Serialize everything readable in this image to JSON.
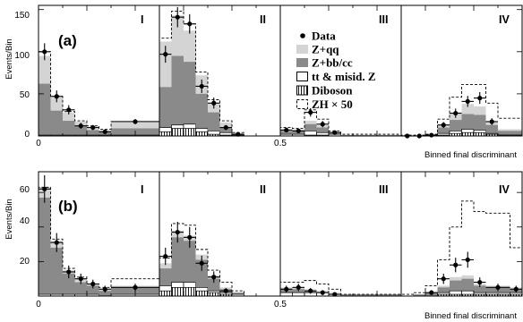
{
  "chart_data": [
    {
      "type": "histogram",
      "panel_label": "(a)",
      "ylabel": "Events/Bin",
      "xlabel": "Binned final discriminant",
      "xlim": [
        0,
        1
      ],
      "ylim": [
        0,
        155
      ],
      "x_ticks": [
        "0",
        "0.5"
      ],
      "y_ticks": [
        "0",
        "50",
        "100",
        "150"
      ],
      "region_labels": [
        "I",
        "II",
        "III",
        "IV"
      ],
      "region_edges": [
        0.25,
        0.5,
        0.75
      ],
      "legend": {
        "position": "center",
        "entries": [
          {
            "label": "Data",
            "marker": "point",
            "color": "#000000"
          },
          {
            "label": "Z+qq",
            "marker": "fill",
            "color": "#d4d4d4"
          },
          {
            "label": "Z+bb/cc",
            "marker": "fill",
            "color": "#8a8a8a"
          },
          {
            "label": "tt & misid. Z",
            "marker": "open",
            "color": "#ffffff"
          },
          {
            "label": "Diboson",
            "marker": "hatch",
            "color": "#ffffff"
          },
          {
            "label": "ZH × 50",
            "marker": "dashed",
            "color": "#000000"
          }
        ]
      },
      "bins": [
        {
          "x0": 0.0,
          "x1": 0.025,
          "dib": 0,
          "tt": 1,
          "zbb": 62,
          "zqq": 95,
          "zh": 100,
          "data": 100,
          "err": 10
        },
        {
          "x0": 0.025,
          "x1": 0.05,
          "dib": 0,
          "tt": 1,
          "zbb": 30,
          "zqq": 46,
          "zh": 47,
          "data": 47,
          "err": 7
        },
        {
          "x0": 0.05,
          "x1": 0.075,
          "dib": 0,
          "tt": 1,
          "zbb": 18,
          "zqq": 28,
          "zh": 29,
          "data": 31,
          "err": 5.5
        },
        {
          "x0": 0.075,
          "x1": 0.1,
          "dib": 0,
          "tt": 1,
          "zbb": 12,
          "zqq": 17,
          "zh": 18,
          "data": 12,
          "err": 3.5
        },
        {
          "x0": 0.1,
          "x1": 0.125,
          "dib": 0,
          "tt": 1,
          "zbb": 7,
          "zqq": 11,
          "zh": 12,
          "data": 10,
          "err": 3
        },
        {
          "x0": 0.125,
          "x1": 0.15,
          "dib": 0,
          "tt": 1,
          "zbb": 5,
          "zqq": 7,
          "zh": 8,
          "data": 5,
          "err": 2.2
        },
        {
          "x0": 0.15,
          "x1": 0.25,
          "dib": 0,
          "tt": 1,
          "zbb": 9,
          "zqq": 16,
          "zh": 17,
          "data": 17,
          "err": 3
        },
        {
          "x0": 0.25,
          "x1": 0.275,
          "dib": 5,
          "tt": 10,
          "zbb": 58,
          "zqq": 112,
          "zh": 116,
          "data": 97,
          "err": 10
        },
        {
          "x0": 0.275,
          "x1": 0.3,
          "dib": 9,
          "tt": 13,
          "zbb": 95,
          "zqq": 143,
          "zh": 148,
          "data": 141,
          "err": 12
        },
        {
          "x0": 0.3,
          "x1": 0.325,
          "dib": 9,
          "tt": 14,
          "zbb": 88,
          "zqq": 125,
          "zh": 133,
          "data": 133,
          "err": 11.5
        },
        {
          "x0": 0.325,
          "x1": 0.35,
          "dib": 5,
          "tt": 9,
          "zbb": 50,
          "zqq": 72,
          "zh": 76,
          "data": 59,
          "err": 8
        },
        {
          "x0": 0.35,
          "x1": 0.375,
          "dib": 2,
          "tt": 6,
          "zbb": 28,
          "zqq": 39,
          "zh": 43,
          "data": 39,
          "err": 6.5
        },
        {
          "x0": 0.375,
          "x1": 0.4,
          "dib": 1,
          "tt": 4,
          "zbb": 10,
          "zqq": 16,
          "zh": 18,
          "data": 10,
          "err": 3
        },
        {
          "x0": 0.4,
          "x1": 0.425,
          "dib": 0,
          "tt": 1,
          "zbb": 2,
          "zqq": 3,
          "zh": 4,
          "data": 2,
          "err": 1.5
        },
        {
          "x0": 0.425,
          "x1": 0.5,
          "dib": 0,
          "tt": 0,
          "zbb": 0,
          "zqq": 0,
          "zh": 0,
          "data": null,
          "err": 0
        },
        {
          "x0": 0.5,
          "x1": 0.525,
          "dib": 0,
          "tt": 2,
          "zbb": 6,
          "zqq": 8,
          "zh": 10,
          "data": 7,
          "err": 2.5
        },
        {
          "x0": 0.525,
          "x1": 0.55,
          "dib": 0,
          "tt": 2,
          "zbb": 6,
          "zqq": 8,
          "zh": 9,
          "data": 6,
          "err": 2.5
        },
        {
          "x0": 0.55,
          "x1": 0.575,
          "dib": 1,
          "tt": 6,
          "zbb": 14,
          "zqq": 18,
          "zh": 31,
          "data": 28,
          "err": 5
        },
        {
          "x0": 0.575,
          "x1": 0.6,
          "dib": 1,
          "tt": 4,
          "zbb": 10,
          "zqq": 13,
          "zh": 20,
          "data": 14,
          "err": 3.7
        },
        {
          "x0": 0.6,
          "x1": 0.625,
          "dib": 0,
          "tt": 2,
          "zbb": 3,
          "zqq": 5,
          "zh": 6,
          "data": 4,
          "err": 2
        },
        {
          "x0": 0.625,
          "x1": 0.75,
          "dib": 0,
          "tt": 0,
          "zbb": 1,
          "zqq": 1,
          "zh": 2,
          "data": null,
          "err": 0
        },
        {
          "x0": 0.75,
          "x1": 0.775,
          "dib": 0,
          "tt": 0,
          "zbb": 0,
          "zqq": 0,
          "zh": 1,
          "data": 0,
          "err": 0.5
        },
        {
          "x0": 0.775,
          "x1": 0.8,
          "dib": 0,
          "tt": 0,
          "zbb": 0,
          "zqq": 0,
          "zh": 1,
          "data": 0,
          "err": 0.5
        },
        {
          "x0": 0.8,
          "x1": 0.825,
          "dib": 0,
          "tt": 0,
          "zbb": 1,
          "zqq": 1,
          "zh": 2,
          "data": 1,
          "err": 1
        },
        {
          "x0": 0.825,
          "x1": 0.85,
          "dib": 1,
          "tt": 3,
          "zbb": 10,
          "zqq": 14,
          "zh": 20,
          "data": 13,
          "err": 3.5
        },
        {
          "x0": 0.85,
          "x1": 0.875,
          "dib": 3,
          "tt": 6,
          "zbb": 19,
          "zqq": 28,
          "zh": 46,
          "data": 27,
          "err": 5.5
        },
        {
          "x0": 0.875,
          "x1": 0.9,
          "dib": 4,
          "tt": 8,
          "zbb": 26,
          "zqq": 38,
          "zh": 61,
          "data": 41,
          "err": 6.5
        },
        {
          "x0": 0.9,
          "x1": 0.925,
          "dib": 4,
          "tt": 7,
          "zbb": 25,
          "zqq": 35,
          "zh": 61,
          "data": 45,
          "err": 7
        },
        {
          "x0": 0.925,
          "x1": 0.95,
          "dib": 2,
          "tt": 3,
          "zbb": 13,
          "zqq": 17,
          "zh": 39,
          "data": 17,
          "err": 4
        },
        {
          "x0": 0.95,
          "x1": 1.0,
          "dib": 1,
          "tt": 1,
          "zbb": 6,
          "zqq": 8,
          "zh": 21,
          "data": null,
          "err": 0
        }
      ]
    },
    {
      "type": "histogram",
      "panel_label": "(b)",
      "ylabel": "Events/Bin",
      "xlabel": "Binned final discriminant",
      "xlim": [
        0,
        1
      ],
      "ylim": [
        0,
        72
      ],
      "x_ticks": [
        "0",
        "0.5"
      ],
      "y_ticks": [
        "20",
        "40",
        "60"
      ],
      "region_labels": [
        "I",
        "II",
        "III",
        "IV"
      ],
      "region_edges": [
        0.25,
        0.5,
        0.75
      ],
      "bins": [
        {
          "x0": 0.0,
          "x1": 0.025,
          "dib": 0,
          "tt": 1,
          "zbb": 57,
          "zqq": 63,
          "zh": 63,
          "data": 62,
          "err": 8
        },
        {
          "x0": 0.025,
          "x1": 0.05,
          "dib": 0,
          "tt": 1,
          "zbb": 28,
          "zqq": 32,
          "zh": 33,
          "data": 31,
          "err": 5.5
        },
        {
          "x0": 0.05,
          "x1": 0.075,
          "dib": 0,
          "tt": 1,
          "zbb": 13,
          "zqq": 15,
          "zh": 16,
          "data": 14,
          "err": 3.7
        },
        {
          "x0": 0.075,
          "x1": 0.1,
          "dib": 0,
          "tt": 1,
          "zbb": 8,
          "zqq": 10,
          "zh": 11,
          "data": 10,
          "err": 3
        },
        {
          "x0": 0.1,
          "x1": 0.125,
          "dib": 0,
          "tt": 1,
          "zbb": 6,
          "zqq": 7,
          "zh": 7,
          "data": 7,
          "err": 2.5
        },
        {
          "x0": 0.125,
          "x1": 0.15,
          "dib": 0,
          "tt": 0,
          "zbb": 3,
          "zqq": 4,
          "zh": 5,
          "data": 4,
          "err": 2
        },
        {
          "x0": 0.15,
          "x1": 0.25,
          "dib": 0,
          "tt": 1,
          "zbb": 5,
          "zqq": 6,
          "zh": 10,
          "data": 5,
          "err": 2.2
        },
        {
          "x0": 0.25,
          "x1": 0.275,
          "dib": 3,
          "tt": 6,
          "zbb": 16,
          "zqq": 19,
          "zh": 22,
          "data": 23,
          "err": 5
        },
        {
          "x0": 0.275,
          "x1": 0.3,
          "dib": 5,
          "tt": 8,
          "zbb": 34,
          "zqq": 38,
          "zh": 42,
          "data": 37,
          "err": 6
        },
        {
          "x0": 0.3,
          "x1": 0.325,
          "dib": 5,
          "tt": 8,
          "zbb": 32,
          "zqq": 35,
          "zh": 41,
          "data": 34,
          "err": 6
        },
        {
          "x0": 0.325,
          "x1": 0.35,
          "dib": 3,
          "tt": 5,
          "zbb": 21,
          "zqq": 24,
          "zh": 27,
          "data": 19,
          "err": 4.4
        },
        {
          "x0": 0.35,
          "x1": 0.375,
          "dib": 2,
          "tt": 3,
          "zbb": 10,
          "zqq": 12,
          "zh": 15,
          "data": 11,
          "err": 3.3
        },
        {
          "x0": 0.375,
          "x1": 0.4,
          "dib": 1,
          "tt": 2,
          "zbb": 4,
          "zqq": 5,
          "zh": 8,
          "data": 3,
          "err": 1.7
        },
        {
          "x0": 0.4,
          "x1": 0.425,
          "dib": 0,
          "tt": 1,
          "zbb": 2,
          "zqq": 2,
          "zh": 3,
          "data": null,
          "err": 0
        },
        {
          "x0": 0.425,
          "x1": 0.5,
          "dib": 0,
          "tt": 0,
          "zbb": 0,
          "zqq": 0,
          "zh": 0,
          "data": null,
          "err": 0
        },
        {
          "x0": 0.5,
          "x1": 0.525,
          "dib": 0,
          "tt": 2,
          "zbb": 4,
          "zqq": 5,
          "zh": 8,
          "data": 4,
          "err": 2
        },
        {
          "x0": 0.525,
          "x1": 0.55,
          "dib": 0,
          "tt": 2,
          "zbb": 4,
          "zqq": 5,
          "zh": 8,
          "data": 5,
          "err": 2.2
        },
        {
          "x0": 0.55,
          "x1": 0.575,
          "dib": 0,
          "tt": 2,
          "zbb": 3,
          "zqq": 4,
          "zh": 9,
          "data": 3,
          "err": 1.7
        },
        {
          "x0": 0.575,
          "x1": 0.6,
          "dib": 0,
          "tt": 2,
          "zbb": 2,
          "zqq": 3,
          "zh": 7,
          "data": 2,
          "err": 1.4
        },
        {
          "x0": 0.6,
          "x1": 0.625,
          "dib": 0,
          "tt": 1,
          "zbb": 1,
          "zqq": 2,
          "zh": 4,
          "data": 1,
          "err": 1
        },
        {
          "x0": 0.625,
          "x1": 0.75,
          "dib": 0,
          "tt": 0,
          "zbb": 1,
          "zqq": 1,
          "zh": 1,
          "data": null,
          "err": 0
        },
        {
          "x0": 0.75,
          "x1": 0.775,
          "dib": 0,
          "tt": 0,
          "zbb": 0,
          "zqq": 0,
          "zh": 1,
          "data": null,
          "err": 0
        },
        {
          "x0": 0.775,
          "x1": 0.8,
          "dib": 0,
          "tt": 0,
          "zbb": 1,
          "zqq": 1,
          "zh": 2,
          "data": null,
          "err": 0
        },
        {
          "x0": 0.8,
          "x1": 0.825,
          "dib": 0,
          "tt": 0,
          "zbb": 2,
          "zqq": 2,
          "zh": 6,
          "data": 2,
          "err": 1.4
        },
        {
          "x0": 0.825,
          "x1": 0.85,
          "dib": 1,
          "tt": 2,
          "zbb": 5,
          "zqq": 6,
          "zh": 21,
          "data": 10,
          "err": 3
        },
        {
          "x0": 0.85,
          "x1": 0.875,
          "dib": 1,
          "tt": 3,
          "zbb": 9,
          "zqq": 11,
          "zh": 40,
          "data": 18,
          "err": 4.2
        },
        {
          "x0": 0.875,
          "x1": 0.9,
          "dib": 1,
          "tt": 3,
          "zbb": 10,
          "zqq": 12,
          "zh": 55,
          "data": 21,
          "err": 4.6
        },
        {
          "x0": 0.9,
          "x1": 0.925,
          "dib": 1,
          "tt": 2,
          "zbb": 6,
          "zqq": 7,
          "zh": 49,
          "data": 8,
          "err": 2.8
        },
        {
          "x0": 0.925,
          "x1": 0.975,
          "dib": 1,
          "tt": 2,
          "zbb": 5,
          "zqq": 6,
          "zh": 48,
          "data": 5,
          "err": 2.2
        },
        {
          "x0": 0.975,
          "x1": 1.0,
          "dib": 1,
          "tt": 2,
          "zbb": 4,
          "zqq": 5,
          "zh": 28,
          "data": 4,
          "err": 2
        }
      ]
    }
  ]
}
